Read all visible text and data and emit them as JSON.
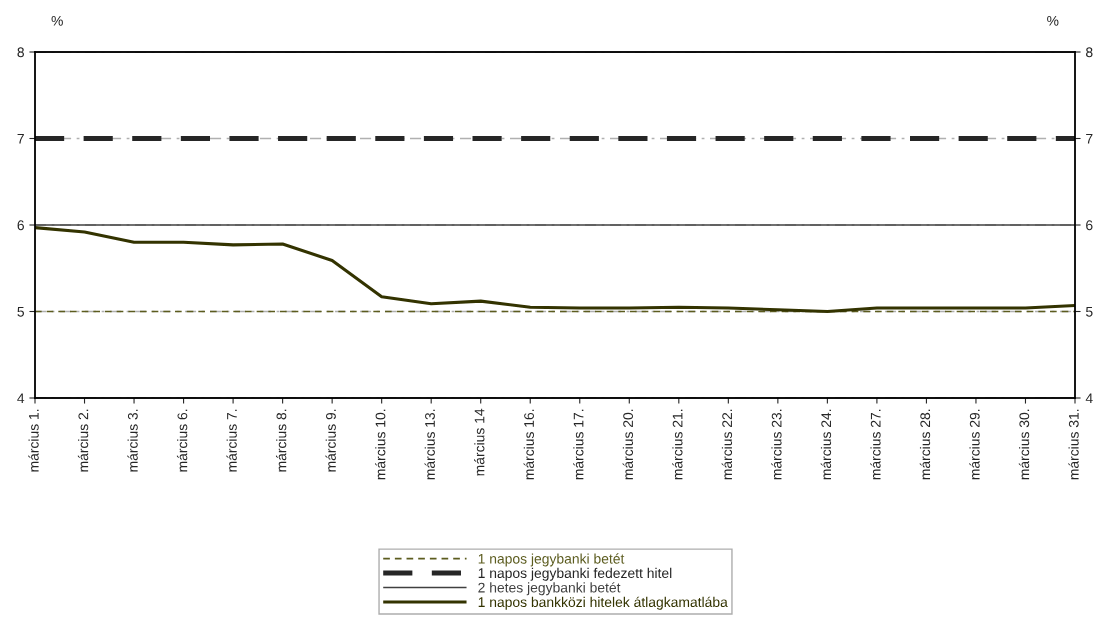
{
  "chart_data": {
    "type": "line",
    "ylabel": "%",
    "y2label": "%",
    "categories": [
      "március 1.",
      "március 2.",
      "március 3.",
      "március 6.",
      "március 7.",
      "március 8.",
      "március 9.",
      "március 10.",
      "március 13.",
      "március 14",
      "március 16.",
      "március 17.",
      "március 20.",
      "március 21.",
      "március 22.",
      "március 23.",
      "március 24.",
      "március 27.",
      "március 28.",
      "március 29.",
      "március 30.",
      "március 31."
    ],
    "series": [
      {
        "name": "1 napos jegybanki betét",
        "color": "#5c5c1f",
        "line_style": "dashed",
        "values": [
          5,
          5,
          5,
          5,
          5,
          5,
          5,
          5,
          5,
          5,
          5,
          5,
          5,
          5,
          5,
          5,
          5,
          5,
          5,
          5,
          5,
          5
        ]
      },
      {
        "name": "1 napos jegybanki fedezett hitel",
        "color": "#262626",
        "line_style": "dashed",
        "values": [
          7,
          7,
          7,
          7,
          7,
          7,
          7,
          7,
          7,
          7,
          7,
          7,
          7,
          7,
          7,
          7,
          7,
          7,
          7,
          7,
          7,
          7
        ]
      },
      {
        "name": "2 hetes jegybanki betét",
        "color": "#404040",
        "line_style": "solid",
        "values": [
          6,
          6,
          6,
          6,
          6,
          6,
          6,
          6,
          6,
          6,
          6,
          6,
          6,
          6,
          6,
          6,
          6,
          6,
          6,
          6,
          6,
          6
        ]
      },
      {
        "name": "1 napos bankközi hitelek átlagkamatlába",
        "color": "#333300",
        "line_style": "solid",
        "values": [
          5.97,
          5.92,
          5.8,
          5.8,
          5.77,
          5.78,
          5.59,
          5.17,
          5.09,
          5.12,
          5.05,
          5.04,
          5.04,
          5.05,
          5.04,
          5.02,
          5.0,
          5.04,
          5.04,
          5.04,
          5.04,
          5.07
        ]
      }
    ],
    "ylim": [
      4,
      8
    ],
    "yticks": [
      4,
      5,
      6,
      7,
      8
    ],
    "y2lim": [
      4,
      8
    ],
    "y2ticks": [
      4,
      5,
      6,
      7,
      8
    ],
    "grid": "y",
    "legend": "bottom",
    "marker": "none"
  }
}
